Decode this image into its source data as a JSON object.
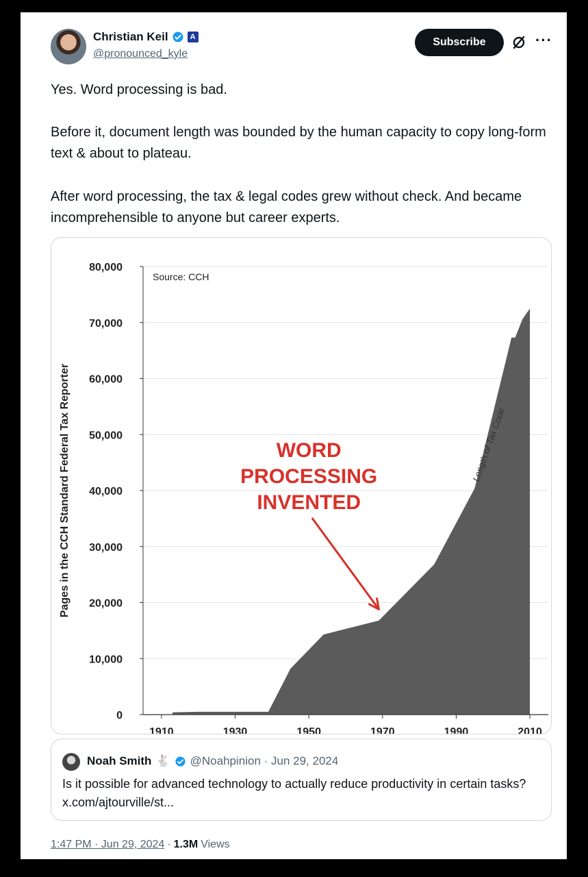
{
  "post": {
    "author_name": "Christian Keil",
    "author_handle": "@pronounced_kyle",
    "badge_letter": "A",
    "subscribe_label": "Subscribe",
    "more_label": "···",
    "paragraphs": [
      "Yes. Word processing is bad.",
      "Before it, document length was bounded by the human capacity to copy long-form text & about to plateau.",
      "After word processing, the tax & legal codes grew without check. And became incomprehensible to anyone but career experts."
    ],
    "timestamp": "1:47 PM · Jun 29, 2024",
    "separator": "·",
    "views_count": "1.3M",
    "views_label": "Views"
  },
  "quote": {
    "name": "Noah Smith",
    "emoji": "🐇",
    "handle_date": "@Noahpinion · Jun 29, 2024",
    "text": "Is it possible for advanced technology to actually reduce productivity in certain tasks? x.com/ajtourville/st..."
  },
  "colors": {
    "accent": "#1d9bf0",
    "area_fill": "#5b5b5b",
    "annotation": "#d6322a"
  },
  "chart_data": {
    "type": "area",
    "title": "",
    "source_note": "Source: CCH",
    "ylabel": "Pages in the CCH Standard Federal Tax Reporter",
    "xlabel": "",
    "series_label": "Length of Tax Code",
    "annotation_lines": [
      "WORD",
      "PROCESSING",
      "INVENTED"
    ],
    "xlim": [
      1905,
      2015
    ],
    "ylim": [
      0,
      80000
    ],
    "x_ticks": [
      1910,
      1930,
      1950,
      1970,
      1990,
      2010
    ],
    "y_ticks": [
      0,
      10000,
      20000,
      30000,
      40000,
      50000,
      60000,
      70000,
      80000
    ],
    "y_tick_labels": [
      "0",
      "10,000",
      "20,000",
      "30,000",
      "40,000",
      "50,000",
      "60,000",
      "70,000",
      "80,000"
    ],
    "grid": true,
    "x": [
      1913,
      1920,
      1930,
      1939,
      1945,
      1954,
      1969,
      1984,
      1995,
      2005,
      2006,
      2008,
      2010
    ],
    "y": [
      400,
      500,
      500,
      500,
      8200,
      14300,
      16800,
      26800,
      40400,
      67300,
      67300,
      70600,
      72500
    ]
  }
}
